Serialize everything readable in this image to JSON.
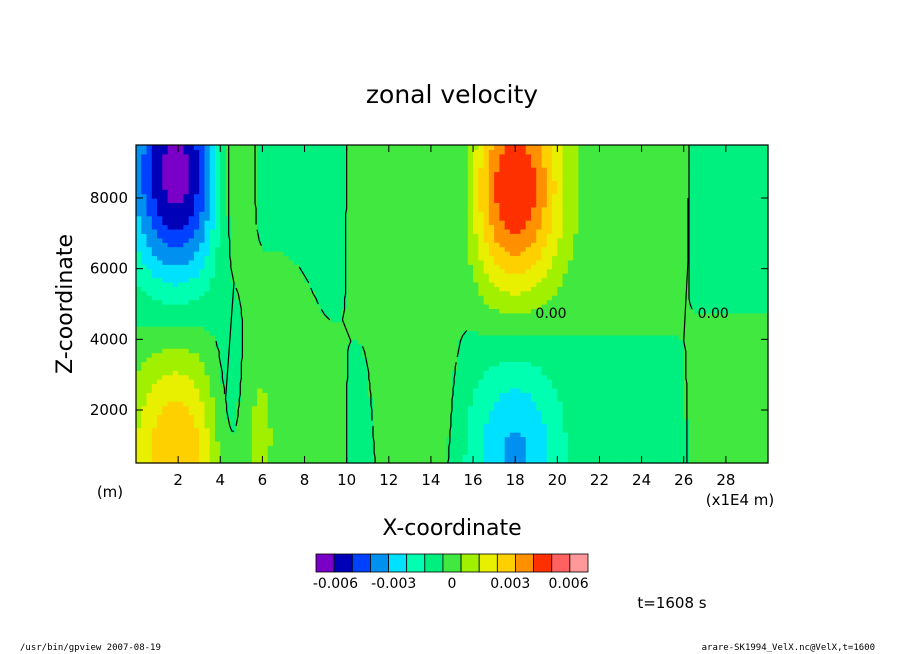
{
  "chart_data": {
    "type": "heatmap",
    "title": "zonal velocity",
    "xlabel": "X-coordinate",
    "ylabel": "Z-coordinate",
    "x_unit_label": "(m)",
    "x_scale_label": "(x1E4 m)",
    "xlim": [
      0,
      30
    ],
    "ylim": [
      500,
      9500
    ],
    "x_ticks": [
      2,
      4,
      6,
      8,
      10,
      12,
      14,
      16,
      18,
      20,
      22,
      24,
      26,
      28
    ],
    "x_tick_labels": [
      "2",
      "4",
      "6",
      "8",
      "10",
      "12",
      "14",
      "16",
      "18",
      "20",
      "22",
      "24",
      "26",
      "28"
    ],
    "y_ticks": [
      2000,
      4000,
      6000,
      8000
    ],
    "y_tick_labels": [
      "2000",
      "4000",
      "6000",
      "8000"
    ],
    "contour_label": "0.00",
    "colorbar": {
      "levels": [
        -0.007,
        -0.006,
        -0.005,
        -0.004,
        -0.003,
        -0.002,
        -0.001,
        0,
        0.001,
        0.002,
        0.003,
        0.004,
        0.005,
        0.006,
        0.007
      ],
      "colors": [
        "#7a00c8",
        "#0000b8",
        "#0040ff",
        "#0090f0",
        "#00e0ff",
        "#00ffb0",
        "#00f080",
        "#40e840",
        "#a0f000",
        "#e8f000",
        "#ffd000",
        "#ff9000",
        "#ff3000",
        "#ff6060",
        "#ff9898"
      ],
      "tick_labels": [
        "-0.006",
        "-0.003",
        "0",
        "0.003",
        "0.006"
      ],
      "tick_values": [
        -0.006,
        -0.003,
        0,
        0.003,
        0.006
      ]
    },
    "centers": [
      {
        "x": 1.9,
        "z": 8700,
        "amp": -0.0065
      },
      {
        "x": 1.9,
        "z": 700,
        "amp": 0.004
      },
      {
        "x": 18.0,
        "z": 8300,
        "amp": 0.006
      },
      {
        "x": 18.0,
        "z": 700,
        "amp": -0.0032
      },
      {
        "x": 4.4,
        "z": 8700,
        "amp": 0.002
      },
      {
        "x": 5.9,
        "z": 1300,
        "amp": 0.0012
      },
      {
        "x": 4.4,
        "z": 1800,
        "amp": -0.0012
      },
      {
        "x": 14.0,
        "z": 2000,
        "amp": 0.001
      },
      {
        "x": 15.4,
        "z": 8600,
        "amp": -0.0012
      },
      {
        "x": 14.2,
        "z": 6800,
        "amp": 0.0008
      },
      {
        "x": 29.5,
        "z": 8000,
        "amp": -0.0008
      },
      {
        "x": 29.5,
        "z": 1500,
        "amp": 0.0008
      }
    ]
  },
  "time_label": "t=1608 s",
  "footer_left": "/usr/bin/gpview   2007-08-19",
  "footer_right": "arare-SK1994_VelX.nc@VelX,t=1600"
}
